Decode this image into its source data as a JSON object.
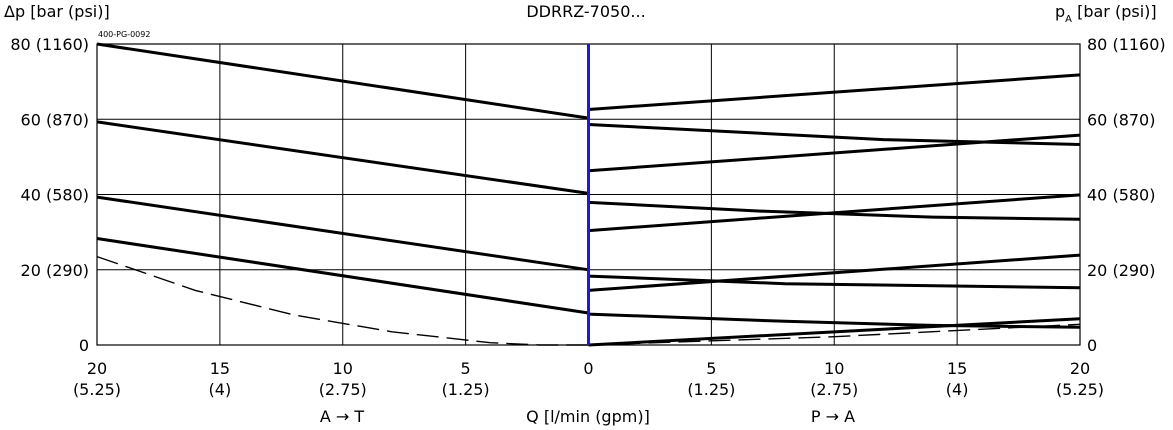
{
  "chart_data": {
    "type": "line",
    "title": "DDRRZ-7050...",
    "code_label": "400-PG-0092",
    "ylabel_left": "Δp [bar (psi)]",
    "ylabel_right_main": "p",
    "ylabel_right_sub": "A",
    "ylabel_right_rest": " [bar (psi)]",
    "xlabel": "Q [l/min (gpm)]",
    "left_direction": "A → T",
    "right_direction": "P → A",
    "x_ticks": [
      {
        "x": -20,
        "l1": "20",
        "l2": "(5.25)"
      },
      {
        "x": -15,
        "l1": "15",
        "l2": "(4)"
      },
      {
        "x": -10,
        "l1": "10",
        "l2": "(2.75)"
      },
      {
        "x": -5,
        "l1": "5",
        "l2": "(1.25)"
      },
      {
        "x": 0,
        "l1": "0",
        "l2": ""
      },
      {
        "x": 5,
        "l1": "5",
        "l2": "(1.25)"
      },
      {
        "x": 10,
        "l1": "10",
        "l2": "(2.75)"
      },
      {
        "x": 15,
        "l1": "15",
        "l2": "(4)"
      },
      {
        "x": 20,
        "l1": "20",
        "l2": "(5.25)"
      }
    ],
    "y_ticks": [
      {
        "y": 0,
        "label": "0"
      },
      {
        "y": 20,
        "label": "20 (290)"
      },
      {
        "y": 40,
        "label": "40 (580)"
      },
      {
        "y": 60,
        "label": "60 (870)"
      },
      {
        "y": 80,
        "label": "80 (1160)"
      }
    ],
    "xlim": [
      -20,
      20
    ],
    "ylim": [
      0,
      80
    ],
    "grid": true,
    "divider_color": "#1a1adb",
    "series": [
      {
        "style": "solid",
        "points": [
          [
            -20,
            80
          ],
          [
            0,
            60.3
          ]
        ]
      },
      {
        "style": "solid",
        "points": [
          [
            -20,
            59.3
          ],
          [
            0,
            40.3
          ]
        ]
      },
      {
        "style": "solid",
        "points": [
          [
            -20,
            39.3
          ],
          [
            0,
            20
          ]
        ]
      },
      {
        "style": "solid",
        "points": [
          [
            -20,
            28.3
          ],
          [
            0,
            8.5
          ]
        ]
      },
      {
        "style": "dashed",
        "points": [
          [
            -20,
            23.5
          ],
          [
            -16,
            14.5
          ],
          [
            -12,
            8
          ],
          [
            -8,
            3.5
          ],
          [
            -4,
            0.6
          ],
          [
            -2,
            0
          ],
          [
            0,
            0
          ]
        ]
      },
      {
        "style": "solid",
        "points": [
          [
            0,
            62.6
          ],
          [
            20,
            71.8
          ]
        ]
      },
      {
        "style": "solid",
        "points": [
          [
            0,
            58.6
          ],
          [
            6,
            56.6
          ],
          [
            12,
            54.6
          ],
          [
            20,
            53.3
          ]
        ]
      },
      {
        "style": "solid",
        "points": [
          [
            0,
            46.3
          ],
          [
            20,
            55.8
          ]
        ]
      },
      {
        "style": "solid",
        "points": [
          [
            0,
            37.9
          ],
          [
            7,
            35.6
          ],
          [
            14,
            34
          ],
          [
            20,
            33.4
          ]
        ]
      },
      {
        "style": "solid",
        "points": [
          [
            0,
            30.4
          ],
          [
            20,
            39.9
          ]
        ]
      },
      {
        "style": "solid",
        "points": [
          [
            0,
            18.3
          ],
          [
            8,
            16.3
          ],
          [
            20,
            15.2
          ]
        ]
      },
      {
        "style": "solid",
        "points": [
          [
            0,
            14.5
          ],
          [
            20,
            23.9
          ]
        ]
      },
      {
        "style": "solid",
        "points": [
          [
            0,
            8.2
          ],
          [
            8,
            6.3
          ],
          [
            14,
            5.2
          ],
          [
            20,
            4.7
          ]
        ]
      },
      {
        "style": "solid",
        "points": [
          [
            0,
            0
          ],
          [
            20,
            7
          ]
        ]
      },
      {
        "style": "dashed",
        "points": [
          [
            0,
            0
          ],
          [
            10,
            2.2
          ],
          [
            20,
            5.5
          ]
        ]
      }
    ]
  }
}
